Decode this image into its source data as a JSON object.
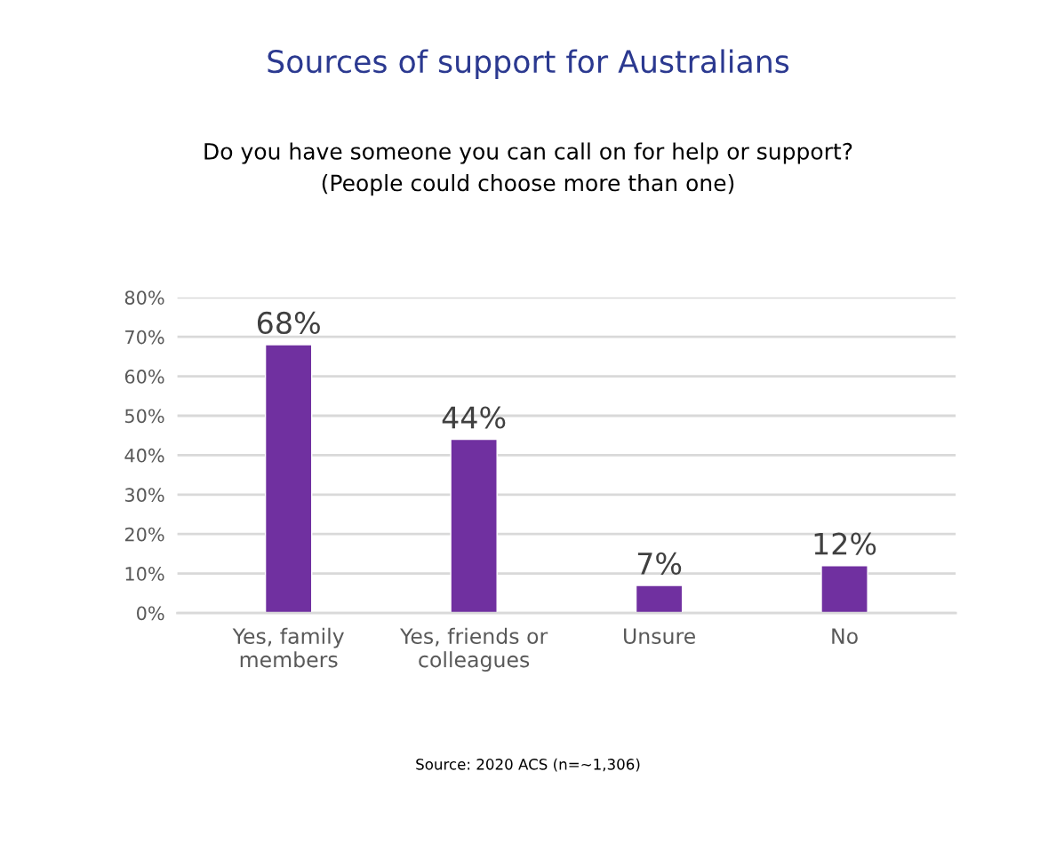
{
  "chart_data": {
    "type": "bar",
    "title": "Sources of support for Australians",
    "subtitle": "Do you have someone you can call on for help or support?\n(People could choose more than one)",
    "categories": [
      "Yes, family\nmembers",
      "Yes, friends or\ncolleagues",
      "Unsure",
      "No"
    ],
    "values": [
      68,
      44,
      7,
      12
    ],
    "value_labels": [
      "68%",
      "44%",
      "7%",
      "12%"
    ],
    "color": "#7030a0",
    "ylim": [
      0,
      80
    ],
    "yticks": [
      {
        "value": 0,
        "label": "0%"
      },
      {
        "value": 10,
        "label": "10%"
      },
      {
        "value": 20,
        "label": "20%"
      },
      {
        "value": 30,
        "label": "30%"
      },
      {
        "value": 40,
        "label": "40%"
      },
      {
        "value": 50,
        "label": "50%"
      },
      {
        "value": 60,
        "label": "60%"
      },
      {
        "value": 70,
        "label": "70%"
      },
      {
        "value": 80,
        "label": "80%"
      }
    ],
    "grid": "y",
    "annotations": [
      "Source: 2020 ACS (n=~1,306)"
    ]
  }
}
